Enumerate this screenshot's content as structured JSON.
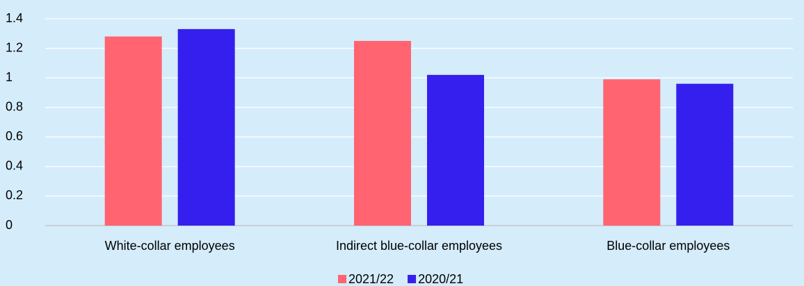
{
  "chart_data": {
    "type": "bar",
    "categories": [
      "White-collar employees",
      "Indirect blue-collar employees",
      "Blue-collar employees"
    ],
    "series": [
      {
        "name": "2021/22",
        "color": "#ff6470",
        "values": [
          1.28,
          1.25,
          0.99
        ]
      },
      {
        "name": "2020/21",
        "color": "#351fee",
        "values": [
          1.33,
          1.02,
          0.96
        ]
      }
    ],
    "ylim": [
      0,
      1.4
    ],
    "yticks": [
      0,
      0.2,
      0.4,
      0.6,
      0.8,
      1,
      1.2,
      1.4
    ],
    "grid": true,
    "legend": "bottom"
  }
}
